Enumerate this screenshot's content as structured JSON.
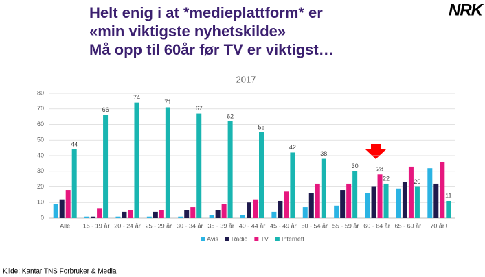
{
  "header": {
    "title_lines": [
      "Helt enig i at *medieplattform* er",
      "«min viktigste nyhetskilde»",
      "Må opp til 60år før TV er viktigst…"
    ],
    "logo": "NRK"
  },
  "source": "Kilde: Kantar TNS Forbruker & Media",
  "chart_data": {
    "type": "bar",
    "title": "2017",
    "categories": [
      "Alle",
      "15 - 19 år",
      "20 - 24 år",
      "25 - 29 år",
      "30 - 34 år",
      "35 - 39 år",
      "40 - 44 år",
      "45 - 49 år",
      "50 - 54 år",
      "55 - 59 år",
      "60 - 64 år",
      "65 - 69 år",
      "70 år+"
    ],
    "series": [
      {
        "name": "Avis",
        "color": "#2bb3e3",
        "values": [
          9,
          1,
          1,
          1,
          1,
          2,
          2,
          4,
          7,
          8,
          16,
          19,
          32
        ]
      },
      {
        "name": "Radio",
        "color": "#1f1a4d",
        "values": [
          12,
          1,
          4,
          4,
          5,
          5,
          10,
          11,
          16,
          18,
          20,
          23,
          22
        ]
      },
      {
        "name": "TV",
        "color": "#e6177e",
        "values": [
          18,
          6,
          5,
          5,
          7,
          9,
          12,
          17,
          22,
          22,
          28,
          33,
          36
        ],
        "value_labels": [
          null,
          null,
          null,
          null,
          null,
          null,
          null,
          null,
          null,
          null,
          "28",
          null,
          null
        ]
      },
      {
        "name": "Internett",
        "color": "#19b5b1",
        "values": [
          44,
          66,
          74,
          71,
          67,
          62,
          55,
          42,
          38,
          30,
          22,
          20,
          11
        ],
        "value_labels": [
          "44",
          "66",
          "74",
          "71",
          "67",
          "62",
          "55",
          "42",
          "38",
          "30",
          "22",
          "20",
          "11"
        ]
      }
    ],
    "ylim": [
      0,
      80
    ],
    "yticks": [
      0,
      10,
      20,
      30,
      40,
      50,
      60,
      70,
      80
    ],
    "grid": true,
    "legend": "bottom"
  }
}
